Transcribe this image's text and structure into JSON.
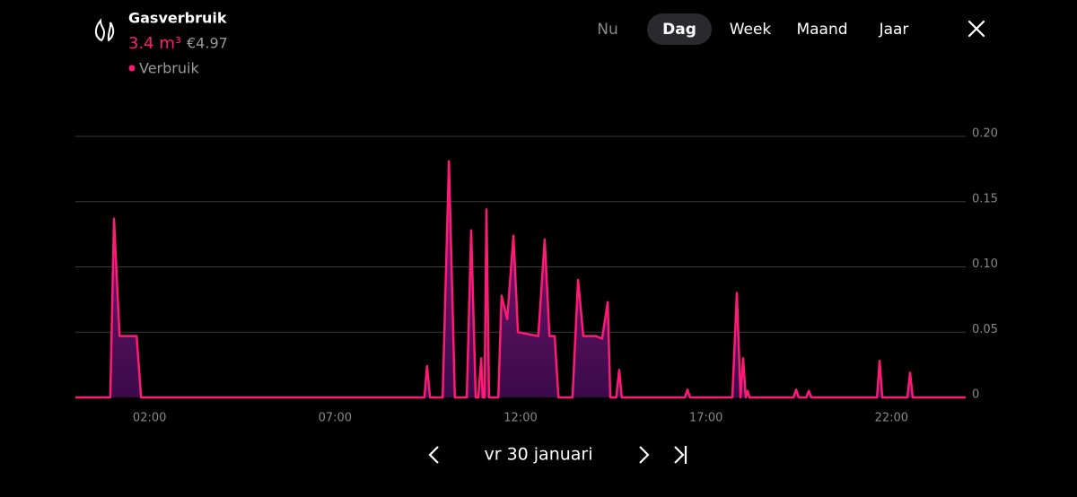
{
  "header": {
    "title": "Gasverbruik",
    "amount": "3.4 m³",
    "cost": "€4.97"
  },
  "tabs": [
    {
      "label": "Nu",
      "selected": false
    },
    {
      "label": "Dag",
      "selected": true
    },
    {
      "label": "Week",
      "selected": false
    },
    {
      "label": "Maand",
      "selected": false
    },
    {
      "label": "Jaar",
      "selected": false
    }
  ],
  "navigation": {
    "date": "vr 30 januari"
  },
  "chart_data": {
    "type": "area",
    "x": [
      0,
      0.94,
      1.04,
      1.19,
      1.65,
      1.77,
      9.41,
      9.48,
      9.56,
      9.9,
      10.07,
      10.23,
      10.55,
      10.67,
      10.79,
      10.86,
      10.94,
      10.98,
      11.03,
      11.08,
      11.15,
      11.4,
      11.49,
      11.64,
      11.81,
      11.93,
      12.48,
      12.65,
      12.78,
      12.92,
      13.02,
      13.4,
      13.55,
      13.69,
      14.03,
      14.2,
      14.35,
      14.42,
      14.58,
      14.66,
      14.73,
      16.43,
      16.5,
      16.57,
      17.71,
      17.83,
      17.93,
      18.0,
      18.07,
      18.12,
      18.17,
      18.22,
      19.36,
      19.43,
      19.5,
      19.7,
      19.77,
      19.84,
      21.61,
      21.68,
      21.75,
      22.43,
      22.5,
      22.57,
      24
    ],
    "series": [
      {
        "name": "Verbruik",
        "color": "#ff1a75",
        "values": [
          0,
          0,
          0.137,
          0.047,
          0.047,
          0,
          0,
          0.024,
          0,
          0,
          0.181,
          0,
          0,
          0.128,
          0,
          0,
          0.03,
          0,
          0,
          0.144,
          0,
          0,
          0.078,
          0.06,
          0.124,
          0.05,
          0.047,
          0.121,
          0.047,
          0.047,
          0,
          0,
          0.09,
          0.047,
          0.047,
          0.045,
          0.073,
          0,
          0,
          0.021,
          0,
          0,
          0.006,
          0,
          0,
          0.08,
          0,
          0.03,
          0,
          0.005,
          0,
          0,
          0,
          0.006,
          0,
          0,
          0.005,
          0,
          0,
          0.028,
          0,
          0,
          0.019,
          0,
          0
        ]
      }
    ],
    "xlim": [
      0,
      24
    ],
    "xticks": [
      {
        "value": 2,
        "label": "02:00"
      },
      {
        "value": 7,
        "label": "07:00"
      },
      {
        "value": 12,
        "label": "12:00"
      },
      {
        "value": 17,
        "label": "17:00"
      },
      {
        "value": 22,
        "label": "22:00"
      }
    ],
    "ylim": [
      0,
      0.2
    ],
    "yticks": [
      0,
      0.05,
      {
        "value": 0.1,
        "label": "0.10"
      },
      0.15,
      {
        "value": 0.2,
        "label": "0.20"
      }
    ],
    "grid": true
  }
}
